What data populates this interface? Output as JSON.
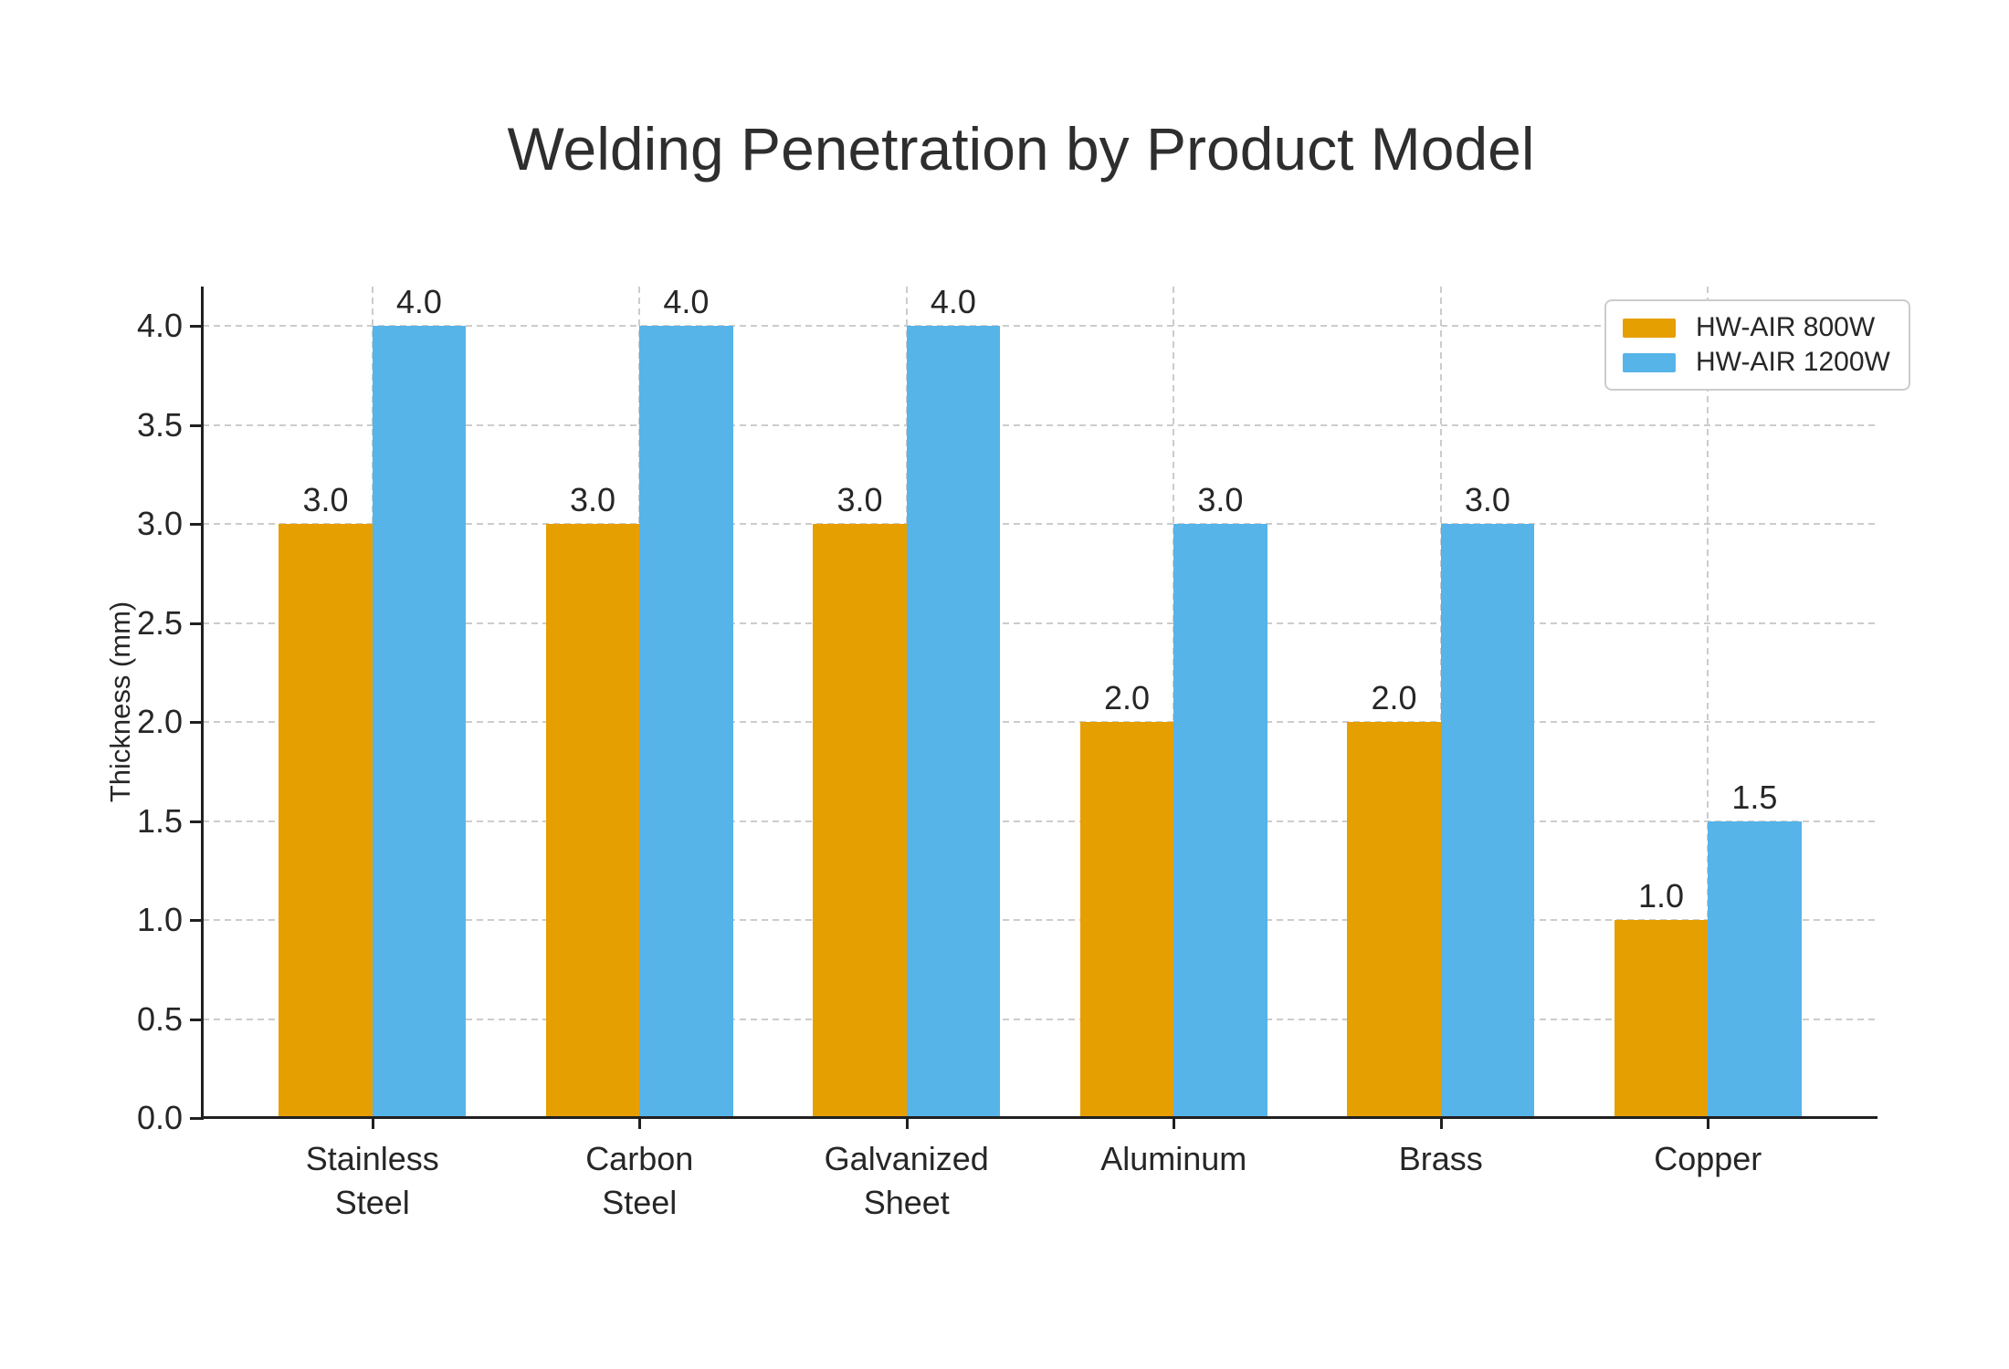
{
  "chart_data": {
    "type": "bar",
    "title": "Welding Penetration by Product Model",
    "xlabel": "",
    "ylabel": "Thickness (mm)",
    "categories": [
      "Stainless\nSteel",
      "Carbon\nSteel",
      "Galvanized\nSheet",
      "Aluminum",
      "Brass",
      "Copper"
    ],
    "series": [
      {
        "name": "HW-AIR 800W",
        "color": "#E69F00",
        "values": [
          3.0,
          3.0,
          3.0,
          2.0,
          2.0,
          1.0
        ]
      },
      {
        "name": "HW-AIR 1200W",
        "color": "#56B4E9",
        "values": [
          4.0,
          4.0,
          4.0,
          3.0,
          3.0,
          1.5
        ]
      }
    ],
    "yticks": [
      0.0,
      0.5,
      1.0,
      1.5,
      2.0,
      2.5,
      3.0,
      3.5,
      4.0
    ],
    "ylim": [
      0,
      4.2
    ],
    "grid": true,
    "grid_style": "dashed",
    "legend_position": "upper right",
    "bar_value_labels_shown": true,
    "colors": {
      "grid": "#cccccc",
      "spine": "#202020",
      "text": "#262626",
      "title": "#2e2e2e",
      "background": "#ffffff",
      "legend_border": "#cccccc"
    }
  }
}
